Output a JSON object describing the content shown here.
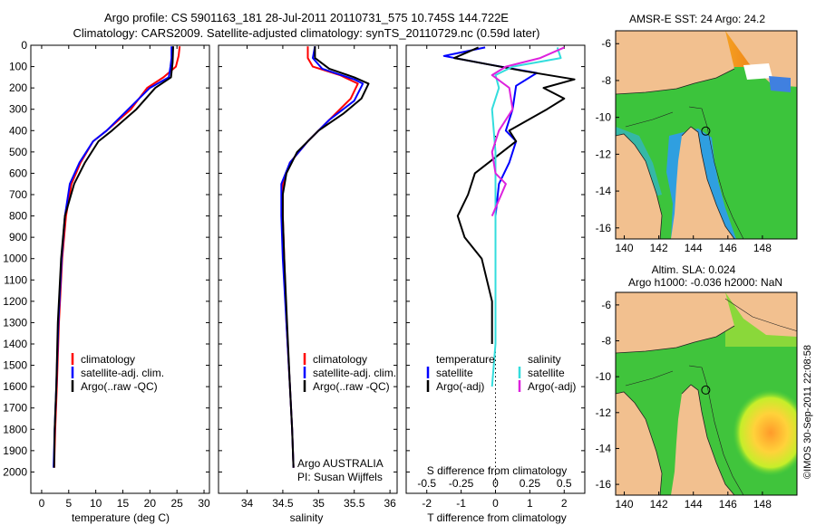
{
  "header": {
    "line1": "Argo profile: CS 5901163_181 28-Jul-2011 20110731_575 10.745S 144.722E",
    "line2": "Climatology: CARS2009. Satellite-adjusted climatology: synTS_20110729.nc (0.59d later)"
  },
  "footer": {
    "argo_label": "Argo AUSTRALIA",
    "pi_label": "PI: Susan Wijffels",
    "imos_stamp": "©IMOS 30-Sep-2011 22:08:58"
  },
  "colors": {
    "climatology": "#ff0000",
    "satellite_adj": "#0000ff",
    "argo": "#000000",
    "sal_diff_sat": "#33dddd",
    "sal_diff_argo": "#dd22dd",
    "land": "#f2c08f"
  },
  "chart_data": [
    {
      "id": "temperature",
      "type": "line",
      "xlabel": "temperature (deg C)",
      "ylabel": "",
      "xlim": [
        -2,
        31
      ],
      "ylim": [
        0,
        2100
      ],
      "xticks": [
        0,
        5,
        10,
        15,
        20,
        25,
        30
      ],
      "yticks": [
        0,
        100,
        200,
        300,
        400,
        500,
        600,
        700,
        800,
        900,
        1000,
        1100,
        1200,
        1300,
        1400,
        1500,
        1600,
        1700,
        1800,
        1900,
        2000
      ],
      "legend": {
        "position": "bottom-center",
        "entries": [
          "climatology",
          "satellite-adj. clim.",
          "Argo(..raw -QC)"
        ]
      },
      "series": [
        {
          "name": "climatology",
          "color": "#ff0000",
          "points": [
            [
              25.5,
              5
            ],
            [
              25.3,
              50
            ],
            [
              24.8,
              100
            ],
            [
              22.5,
              150
            ],
            [
              19.5,
              200
            ],
            [
              16.5,
              300
            ],
            [
              12,
              400
            ],
            [
              9.5,
              450
            ],
            [
              7.2,
              550
            ],
            [
              5.5,
              650
            ],
            [
              4.5,
              800
            ],
            [
              3.8,
              1000
            ],
            [
              3.2,
              1300
            ],
            [
              2.8,
              1600
            ],
            [
              2.5,
              1800
            ],
            [
              2.3,
              1980
            ]
          ]
        },
        {
          "name": "satellite-adj. clim.",
          "color": "#0000ff",
          "points": [
            [
              24,
              5
            ],
            [
              24,
              60
            ],
            [
              23.8,
              100
            ],
            [
              23.5,
              150
            ],
            [
              20,
              200
            ],
            [
              16,
              300
            ],
            [
              12,
              400
            ],
            [
              9.5,
              450
            ],
            [
              7,
              550
            ],
            [
              5.2,
              650
            ],
            [
              4.3,
              800
            ],
            [
              3.7,
              1000
            ],
            [
              3.1,
              1300
            ],
            [
              2.7,
              1600
            ],
            [
              2.4,
              1800
            ],
            [
              2.2,
              1980
            ]
          ]
        },
        {
          "name": "Argo(..raw -QC)",
          "color": "#000000",
          "points": [
            [
              24.3,
              5
            ],
            [
              24.2,
              80
            ],
            [
              23.9,
              150
            ],
            [
              21,
              200
            ],
            [
              17.5,
              300
            ],
            [
              13,
              400
            ],
            [
              10.5,
              450
            ],
            [
              8,
              550
            ],
            [
              6,
              650
            ],
            [
              4.3,
              800
            ],
            [
              3.6,
              1000
            ],
            [
              3,
              1300
            ],
            [
              2.7,
              1600
            ],
            [
              2.4,
              1800
            ],
            [
              2.3,
              1980
            ]
          ]
        }
      ]
    },
    {
      "id": "salinity",
      "type": "line",
      "xlabel": "salinity",
      "ylabel": "",
      "xlim": [
        33.6,
        36.1
      ],
      "ylim": [
        0,
        2100
      ],
      "xticks": [
        34,
        34.5,
        35,
        35.5,
        36
      ],
      "legend": {
        "position": "bottom-center",
        "entries": [
          "climatology",
          "satellite-adj. clim.",
          "Argo(..raw -QC)"
        ]
      },
      "series": [
        {
          "name": "climatology",
          "color": "#ff0000",
          "points": [
            [
              34.85,
              5
            ],
            [
              34.85,
              60
            ],
            [
              34.92,
              100
            ],
            [
              35.3,
              140
            ],
            [
              35.55,
              180
            ],
            [
              35.45,
              250
            ],
            [
              35.15,
              350
            ],
            [
              34.85,
              450
            ],
            [
              34.6,
              550
            ],
            [
              34.5,
              650
            ],
            [
              34.5,
              800
            ],
            [
              34.52,
              1000
            ],
            [
              34.55,
              1300
            ],
            [
              34.6,
              1600
            ],
            [
              34.63,
              1800
            ],
            [
              34.65,
              1980
            ]
          ]
        },
        {
          "name": "satellite-adj. clim.",
          "color": "#0000ff",
          "points": [
            [
              34.95,
              5
            ],
            [
              34.92,
              60
            ],
            [
              35.05,
              110
            ],
            [
              35.5,
              160
            ],
            [
              35.62,
              180
            ],
            [
              35.5,
              260
            ],
            [
              35.15,
              350
            ],
            [
              34.85,
              450
            ],
            [
              34.6,
              550
            ],
            [
              34.48,
              650
            ],
            [
              34.48,
              800
            ],
            [
              34.5,
              1000
            ],
            [
              34.55,
              1300
            ],
            [
              34.6,
              1600
            ],
            [
              34.63,
              1800
            ],
            [
              34.65,
              1980
            ]
          ]
        },
        {
          "name": "Argo(..raw -QC)",
          "color": "#000000",
          "points": [
            [
              34.95,
              5
            ],
            [
              34.95,
              60
            ],
            [
              35.15,
              110
            ],
            [
              35.5,
              150
            ],
            [
              35.7,
              180
            ],
            [
              35.6,
              250
            ],
            [
              35.35,
              320
            ],
            [
              35.0,
              400
            ],
            [
              34.7,
              500
            ],
            [
              34.55,
              600
            ],
            [
              34.5,
              700
            ],
            [
              34.5,
              800
            ],
            [
              34.52,
              1000
            ],
            [
              34.56,
              1300
            ],
            [
              34.6,
              1600
            ],
            [
              34.63,
              1800
            ],
            [
              34.65,
              1980
            ]
          ]
        }
      ]
    },
    {
      "id": "differences",
      "type": "line",
      "xlabel": "T difference from climatology",
      "x2label": "S difference from climatology",
      "xlim": [
        -2.6,
        2.6
      ],
      "ylim": [
        0,
        2100
      ],
      "xticks": [
        -2,
        -1,
        0,
        1,
        2
      ],
      "xtick_labels": [
        "-2",
        "-1",
        "0",
        "1",
        "2"
      ],
      "x2ticks": [
        -2,
        -1,
        0,
        1,
        2
      ],
      "x2tick_labels": [
        "-0.5",
        "-0.25",
        "0",
        "0.25",
        "0.5"
      ],
      "legend": {
        "position": "bottom-center",
        "temperature_title": "temperature",
        "salinity_title": "salinity",
        "temperature_entries": [
          "satellite",
          "Argo(-adj)"
        ],
        "salinity_entries": [
          "satellite",
          "Argo(-adj)"
        ]
      },
      "series": [
        {
          "name": "temperature satellite",
          "color": "#0000ff",
          "points": [
            [
              -0.3,
              10
            ],
            [
              -1.5,
              50
            ],
            [
              -0.2,
              90
            ],
            [
              1.2,
              130
            ],
            [
              0.6,
              190
            ],
            [
              0.5,
              300
            ],
            [
              0.3,
              400
            ],
            [
              0.6,
              450
            ],
            [
              0.4,
              550
            ],
            [
              0.1,
              650
            ],
            [
              0,
              800
            ],
            [
              0,
              1000
            ],
            [
              0,
              1400
            ]
          ]
        },
        {
          "name": "temperature Argo(-adj)",
          "color": "#000000",
          "points": [
            [
              -0.5,
              10
            ],
            [
              -1.2,
              60
            ],
            [
              0.8,
              120
            ],
            [
              2.3,
              160
            ],
            [
              1.4,
              200
            ],
            [
              2.0,
              250
            ],
            [
              1.5,
              300
            ],
            [
              0.4,
              400
            ],
            [
              0.6,
              450
            ],
            [
              -0.6,
              600
            ],
            [
              -0.8,
              700
            ],
            [
              -1.1,
              800
            ],
            [
              -0.9,
              900
            ],
            [
              -0.4,
              1000
            ],
            [
              -0.1,
              1200
            ],
            [
              -0.1,
              1400
            ]
          ]
        },
        {
          "name": "salinity satellite",
          "color": "#33dddd",
          "points": [
            [
              1.8,
              10
            ],
            [
              1.9,
              60
            ],
            [
              0.5,
              100
            ],
            [
              0.0,
              140
            ],
            [
              0.1,
              200
            ],
            [
              -0.1,
              300
            ],
            [
              0,
              500
            ],
            [
              0,
              700
            ],
            [
              0,
              900
            ],
            [
              0,
              1400
            ],
            [
              -0.1,
              1600
            ]
          ]
        },
        {
          "name": "salinity Argo(-adj)",
          "color": "#dd22dd",
          "points": [
            [
              2.0,
              10
            ],
            [
              1.3,
              60
            ],
            [
              0.3,
              100
            ],
            [
              -0.1,
              140
            ],
            [
              0.4,
              200
            ],
            [
              0.5,
              300
            ],
            [
              0.1,
              400
            ],
            [
              -0.1,
              500
            ],
            [
              0,
              600
            ],
            [
              0.3,
              650
            ],
            [
              -0.1,
              800
            ]
          ]
        }
      ]
    },
    {
      "id": "map_sst",
      "type": "heatmap",
      "title": "AMSR-E SST: 24 Argo: 24.2",
      "xlim": [
        139.5,
        150
      ],
      "ylim": [
        -16.6,
        -5.3
      ],
      "xticks": [
        140,
        142,
        144,
        146,
        148
      ],
      "yticks": [
        -6,
        -8,
        -10,
        -12,
        -14,
        -16
      ],
      "argo_position": [
        144.72,
        -10.745
      ]
    },
    {
      "id": "map_sla",
      "type": "heatmap",
      "title_line1": "Altim. SLA: 0.024",
      "title_line2": "Argo h1000: -0.036 h2000: NaN",
      "xlim": [
        139.5,
        150
      ],
      "ylim": [
        -16.6,
        -5.3
      ],
      "xticks": [
        140,
        142,
        144,
        146,
        148
      ],
      "yticks": [
        -6,
        -8,
        -10,
        -12,
        -14,
        -16
      ],
      "argo_position": [
        144.72,
        -10.745
      ]
    }
  ]
}
